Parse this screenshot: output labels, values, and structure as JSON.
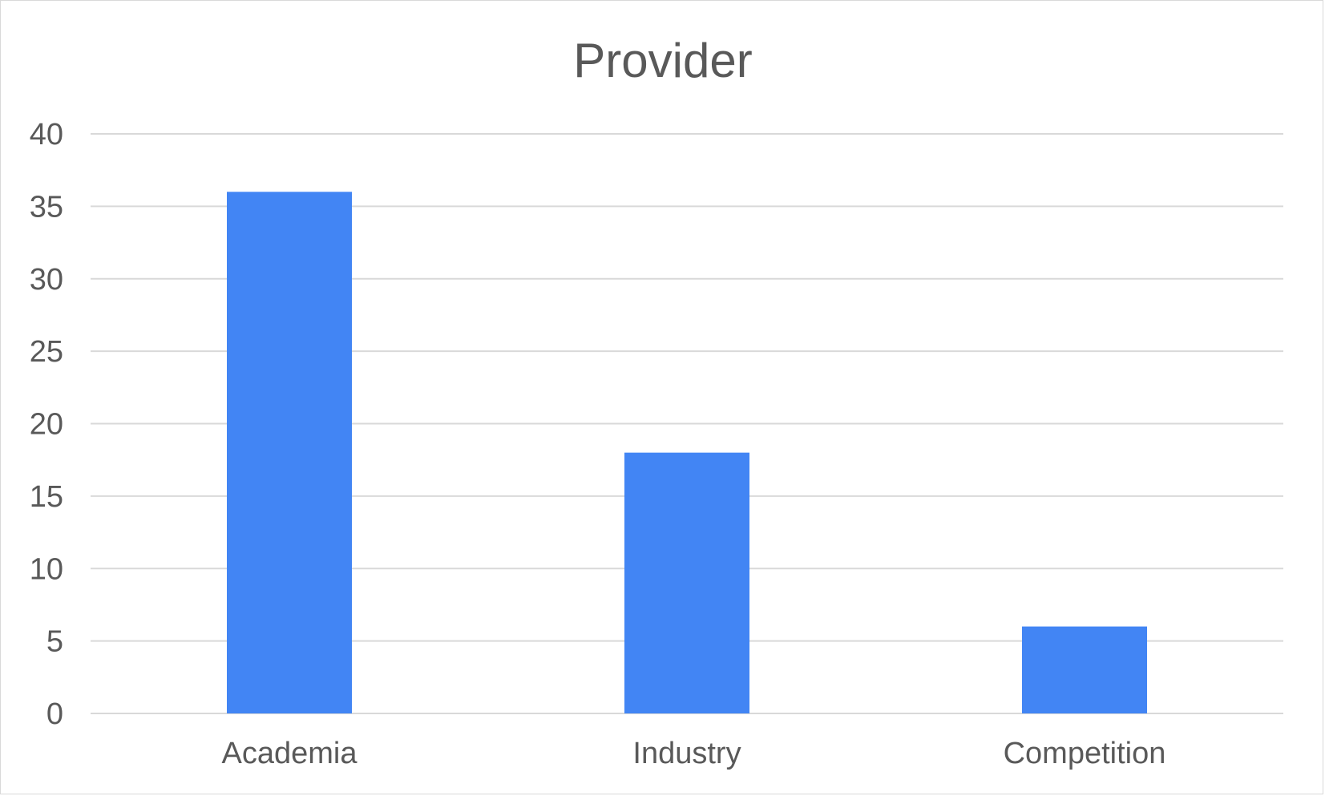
{
  "chart_data": {
    "type": "bar",
    "title": "Provider",
    "categories": [
      "Academia",
      "Industry",
      "Competition"
    ],
    "series": [
      {
        "values": [
          36,
          18,
          6
        ]
      }
    ],
    "xlabel": "",
    "ylabel": "",
    "ylim": [
      0,
      40
    ],
    "yticks": [
      0,
      5,
      10,
      15,
      20,
      25,
      30,
      35,
      40
    ],
    "grid": true,
    "legend": "none",
    "bar_color": "#4285f4"
  }
}
